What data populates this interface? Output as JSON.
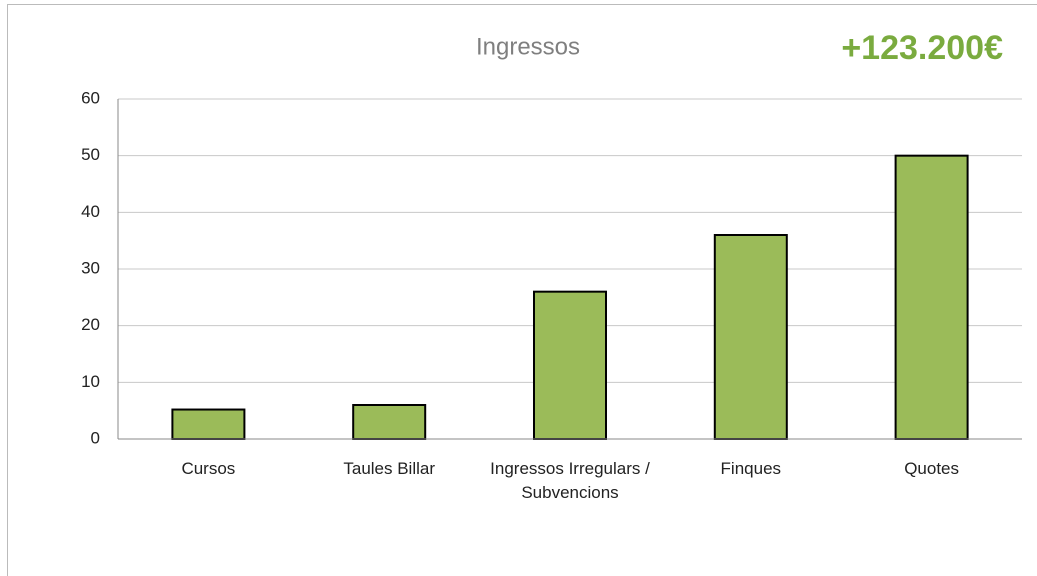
{
  "chart_data": {
    "type": "bar",
    "title": "Ingressos",
    "annotation": "+123.200€",
    "categories": [
      "Cursos",
      "Taules Billar",
      "Ingressos Irregulars / Subvencions",
      "Finques",
      "Quotes"
    ],
    "values": [
      5.2,
      6,
      26,
      36,
      50
    ],
    "color": "#9bbb59",
    "ylim": [
      0,
      60
    ],
    "yticks": [
      0,
      10,
      20,
      30,
      40,
      50,
      60
    ],
    "grid": true
  }
}
